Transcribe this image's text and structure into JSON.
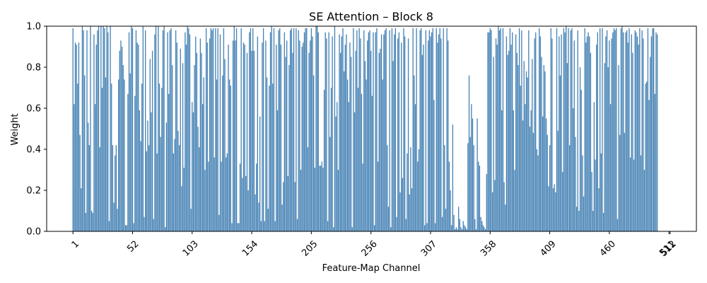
{
  "chart_data": {
    "type": "bar",
    "title": "SE Attention – Block 8",
    "xlabel": "Feature-Map Channel",
    "ylabel": "Weight",
    "x_range": [
      1,
      512
    ],
    "ylim": [
      0,
      1.0
    ],
    "x_ticks": [
      "1",
      "52",
      "103",
      "154",
      "205",
      "256",
      "307",
      "358",
      "409",
      "460",
      "511",
      "512"
    ],
    "y_ticks": [
      "0.0",
      "0.2",
      "0.4",
      "0.6",
      "0.8",
      "1.0"
    ],
    "bar_color": "#4682b4",
    "grid": false,
    "legend": "none",
    "values": [
      0.99,
      0.62,
      0.92,
      0.91,
      0.72,
      0.92,
      0.47,
      0.21,
      1.0,
      0.98,
      0.76,
      0.09,
      0.98,
      0.53,
      0.42,
      1.0,
      0.1,
      0.09,
      0.96,
      0.62,
      0.91,
      0.98,
      1.0,
      0.41,
      1.0,
      0.7,
      1.0,
      0.99,
      0.75,
      1.0,
      0.97,
      0.05,
      1.0,
      0.72,
      0.42,
      0.14,
      0.37,
      0.42,
      0.11,
      0.74,
      0.88,
      0.93,
      0.9,
      0.81,
      0.74,
      0.03,
      0.03,
      0.67,
      0.97,
      0.77,
      1.0,
      0.99,
      0.04,
      0.66,
      0.98,
      0.92,
      0.91,
      0.59,
      0.44,
      0.72,
      1.0,
      0.07,
      0.98,
      0.39,
      0.54,
      0.42,
      0.84,
      0.58,
      0.88,
      0.06,
      0.96,
      1.0,
      0.38,
      1.0,
      0.72,
      0.46,
      0.7,
      0.98,
      1.0,
      0.02,
      0.53,
      0.97,
      0.67,
      0.98,
      0.99,
      0.81,
      0.38,
      0.45,
      0.98,
      0.92,
      0.49,
      0.42,
      0.89,
      0.22,
      0.82,
      0.31,
      0.97,
      0.91,
      1.0,
      0.99,
      0.96,
      0.11,
      0.63,
      0.58,
      0.81,
      0.95,
      0.87,
      0.51,
      0.41,
      0.94,
      0.87,
      0.62,
      0.75,
      0.3,
      0.99,
      0.92,
      0.34,
      0.94,
      0.99,
      0.98,
      0.99,
      0.36,
      0.99,
      0.74,
      0.99,
      0.08,
      0.96,
      0.34,
      0.76,
      0.99,
      0.84,
      0.36,
      0.38,
      0.91,
      0.74,
      0.71,
      0.04,
      0.93,
      1.0,
      0.93,
      0.99,
      0.04,
      0.04,
      0.33,
      0.99,
      0.26,
      0.92,
      0.91,
      0.27,
      0.87,
      0.2,
      0.97,
      0.99,
      0.88,
      0.99,
      0.88,
      0.18,
      0.33,
      0.95,
      0.14,
      0.56,
      0.05,
      0.92,
      0.99,
      0.05,
      0.93,
      0.75,
      0.11,
      0.71,
      0.97,
      1.0,
      0.72,
      0.99,
      0.05,
      0.91,
      0.59,
      0.98,
      0.99,
      0.91,
      0.13,
      0.24,
      0.97,
      0.85,
      0.93,
      0.27,
      0.81,
      0.98,
      0.99,
      0.87,
      0.99,
      0.24,
      0.99,
      0.06,
      0.98,
      0.93,
      0.3,
      0.9,
      0.92,
      0.97,
      0.99,
      0.99,
      0.41,
      0.87,
      0.93,
      0.99,
      0.95,
      0.76,
      0.31,
      1.0,
      1.0,
      0.97,
      0.32,
      0.32,
      0.34,
      0.31,
      0.69,
      0.97,
      0.94,
      0.05,
      0.97,
      0.46,
      0.7,
      0.95,
      0.02,
      1.0,
      0.56,
      0.63,
      0.3,
      0.96,
      0.87,
      0.95,
      0.99,
      0.78,
      0.91,
      0.96,
      0.74,
      0.63,
      0.92,
      0.85,
      0.02,
      0.99,
      0.58,
      0.88,
      0.98,
      0.7,
      0.99,
      0.94,
      0.67,
      0.33,
      0.98,
      0.83,
      0.74,
      0.93,
      0.97,
      0.98,
      0.88,
      0.66,
      0.97,
      0.03,
      0.97,
      0.99,
      0.34,
      0.87,
      0.89,
      0.96,
      0.74,
      0.96,
      0.98,
      0.99,
      0.42,
      0.12,
      0.98,
      0.02,
      0.99,
      0.83,
      0.96,
      0.99,
      0.07,
      0.94,
      0.97,
      0.19,
      0.92,
      0.26,
      0.99,
      0.95,
      0.06,
      0.38,
      0.94,
      0.18,
      0.41,
      0.21,
      0.99,
      0.76,
      0.62,
      0.99,
      0.34,
      0.4,
      0.98,
      0.99,
      0.86,
      0.91,
      0.03,
      0.98,
      0.04,
      0.93,
      0.98,
      0.95,
      0.97,
      0.99,
      0.64,
      0.04,
      0.99,
      0.92,
      0.96,
      0.99,
      0.94,
      0.07,
      0.99,
      0.42,
      0.11,
      0.99,
      0.93,
      0.34,
      0.2,
      0.03,
      0.52,
      0.08,
      0.01,
      0.02,
      0.01,
      0.12,
      0.06,
      0.02,
      0.01,
      0.05,
      0.03,
      0.02,
      0.01,
      0.43,
      0.76,
      0.46,
      0.62,
      0.55,
      0.42,
      0.06,
      0.01,
      0.55,
      0.34,
      0.32,
      0.07,
      0.05,
      0.03,
      0.02,
      0.01,
      0.28,
      0.97,
      0.97,
      0.99,
      0.98,
      0.19,
      0.85,
      0.25,
      0.94,
      0.91,
      1.0,
      0.98,
      0.99,
      0.59,
      0.99,
      0.24,
      0.13,
      0.95,
      0.86,
      0.88,
      0.99,
      0.91,
      0.97,
      0.59,
      0.3,
      0.96,
      0.87,
      0.81,
      0.99,
      0.71,
      0.98,
      0.54,
      0.83,
      0.62,
      0.78,
      0.75,
      0.98,
      0.51,
      0.59,
      0.84,
      0.48,
      0.94,
      0.97,
      0.4,
      0.37,
      0.99,
      0.95,
      0.85,
      0.56,
      0.81,
      0.78,
      0.55,
      0.47,
      0.22,
      0.42,
      0.99,
      0.94,
      0.21,
      0.23,
      0.19,
      0.99,
      0.49,
      0.95,
      0.76,
      0.96,
      0.29,
      0.99,
      0.97,
      1.0,
      0.82,
      0.99,
      0.42,
      0.98,
      0.99,
      0.6,
      0.93,
      0.46,
      0.12,
      0.98,
      0.1,
      0.8,
      0.69,
      0.37,
      0.17,
      0.99,
      0.92,
      0.95,
      0.97,
      0.95,
      0.87,
      0.29,
      0.1,
      0.63,
      0.35,
      0.91,
      0.97,
      0.21,
      0.99,
      0.38,
      0.99,
      0.09,
      0.82,
      0.95,
      0.98,
      0.8,
      0.93,
      0.62,
      0.94,
      0.97,
      0.99,
      0.98,
      0.99,
      0.06,
      0.81,
      0.47,
      0.99,
      1.0,
      0.97,
      0.48,
      0.97,
      0.98,
      0.92,
      0.99,
      0.36,
      0.96,
      0.87,
      0.35,
      0.98,
      0.97,
      0.95,
      0.91,
      0.99,
      0.37,
      0.98,
      0.94,
      0.3,
      0.72,
      0.73,
      0.99,
      0.64,
      0.85,
      0.95,
      0.99,
      0.99,
      0.67,
      0.97,
      0.96
    ]
  }
}
